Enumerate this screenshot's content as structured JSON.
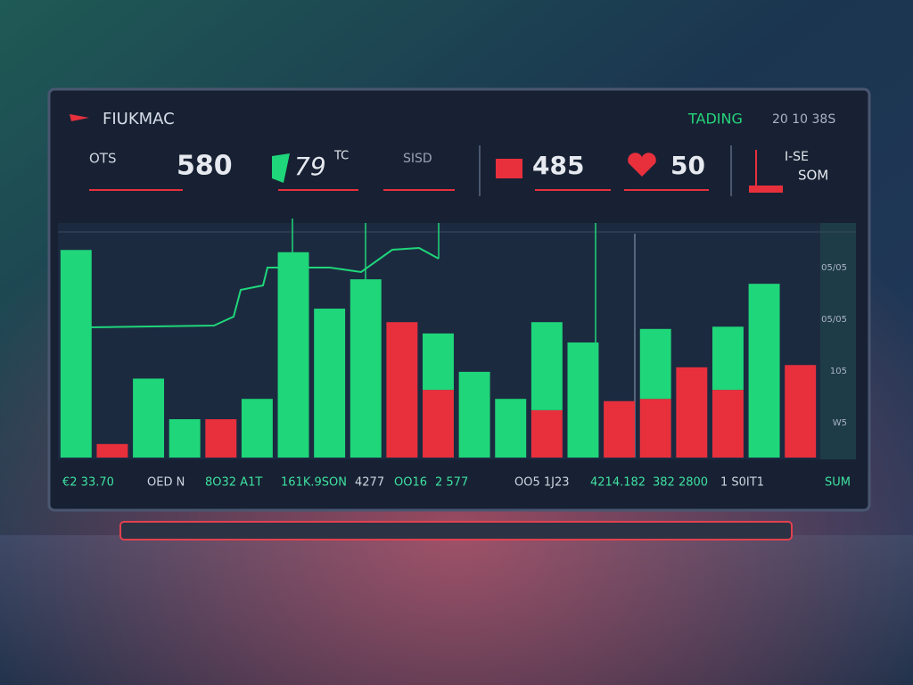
{
  "header": {
    "logo": "FIUKMAC",
    "label": "TADING",
    "time": "20 10 38S"
  },
  "stats": {
    "ots_label": "OTS",
    "ots_value": "580",
    "green_value": "79",
    "green_unit": "TC",
    "sisd_label": "SISD",
    "red_value": "485",
    "heart_value": "50",
    "side_top": "I-SE",
    "side_bottom": "SOM"
  },
  "side_labels": [
    "05/05",
    "05/05",
    "105",
    "W5"
  ],
  "ticker": [
    "€2 33.70",
    "OED N",
    "8O32 A1T",
    "161K.9SON",
    "4277",
    "OO16",
    "2 577",
    "OO5 1J23",
    "4214.182",
    "382 2800",
    "1 S0IT1",
    "SUM"
  ],
  "chart_data": {
    "type": "bar",
    "stacked": true,
    "categories": [
      null,
      null,
      null,
      null,
      null,
      null,
      null,
      null,
      null,
      null,
      null,
      null,
      null,
      null,
      null,
      null,
      null,
      null,
      null,
      null,
      null
    ],
    "series": [
      {
        "color": "#e8303d",
        "values": [
          null,
          6,
          null,
          null,
          17,
          null,
          null,
          null,
          null,
          60,
          30,
          null,
          null,
          21,
          null,
          25,
          26,
          40,
          30,
          null,
          41
        ]
      },
      {
        "color": "#1fd67a",
        "values": [
          92,
          null,
          35,
          17,
          null,
          26,
          91,
          66,
          79,
          null,
          25,
          38,
          26,
          39,
          51,
          null,
          31,
          null,
          28,
          77,
          null
        ]
      }
    ],
    "ylim": [
      0,
      100
    ]
  }
}
